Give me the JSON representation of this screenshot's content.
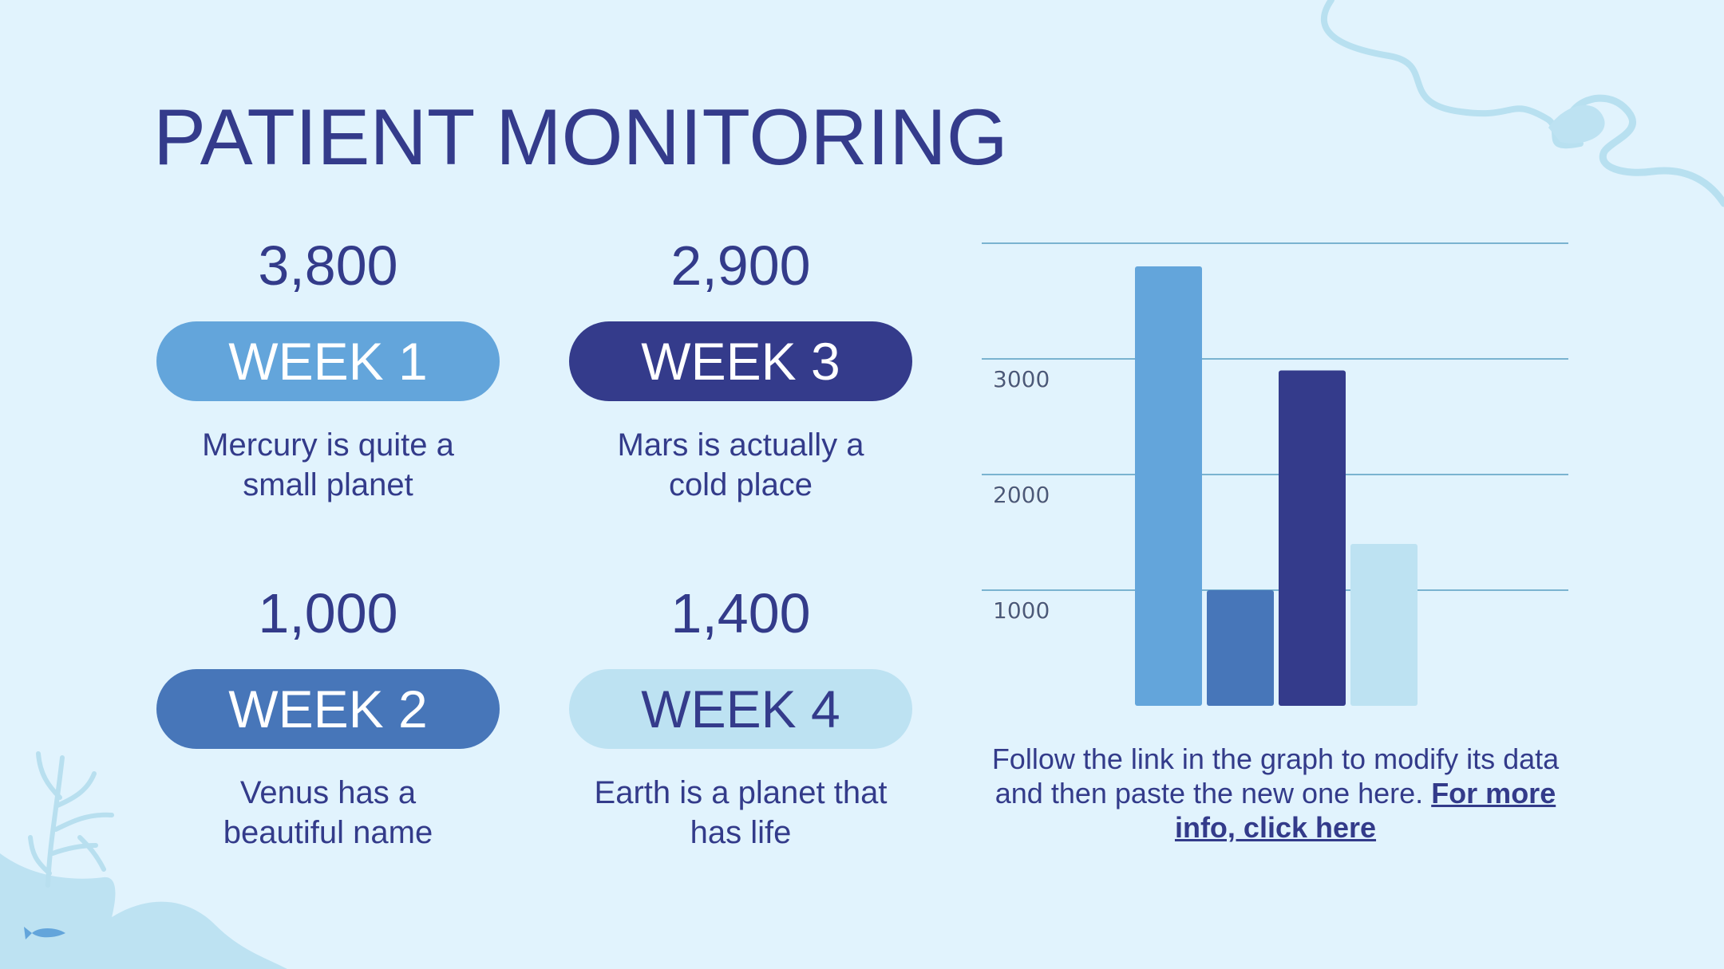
{
  "title": "PATIENT MONITORING",
  "cards": [
    {
      "id": "week1",
      "value": "3,800",
      "label": "WEEK 1",
      "desc_line1": "Mercury is quite a",
      "desc_line2": "small planet",
      "pill_color": "#63a5db",
      "text_color": "#ffffff"
    },
    {
      "id": "week3",
      "value": "2,900",
      "label": "WEEK 3",
      "desc_line1": "Mars is actually a",
      "desc_line2": "cold place",
      "pill_color": "#343b8b",
      "text_color": "#ffffff"
    },
    {
      "id": "week2",
      "value": "1,000",
      "label": "WEEK 2",
      "desc_line1": "Venus has a",
      "desc_line2": "beautiful name",
      "pill_color": "#4776b9",
      "text_color": "#ffffff"
    },
    {
      "id": "week4",
      "value": "1,400",
      "label": "WEEK 4",
      "desc_line1": "Earth is a planet that",
      "desc_line2": "has life",
      "pill_color": "#bde2f2",
      "text_color": "#343b8b"
    }
  ],
  "chart_data": {
    "type": "bar",
    "title": "",
    "xlabel": "",
    "ylabel": "",
    "ylim": [
      0,
      4000
    ],
    "yticks_shown": [
      "1000",
      "2000",
      "3000"
    ],
    "grid": true,
    "legend": "none",
    "categories": [
      "Week 1",
      "Week 2",
      "Week 3",
      "Week 4"
    ],
    "values": [
      3800,
      1000,
      2900,
      1400
    ],
    "colors": [
      "#63a5db",
      "#4776b9",
      "#343b8b",
      "#bde2f2"
    ],
    "gridline_color": "#7ab3d0",
    "tick_color": "#4a5a7a"
  },
  "note": {
    "text": "Follow the link in the graph to modify its data and then paste the new one here. ",
    "link": "For more info, click here"
  }
}
